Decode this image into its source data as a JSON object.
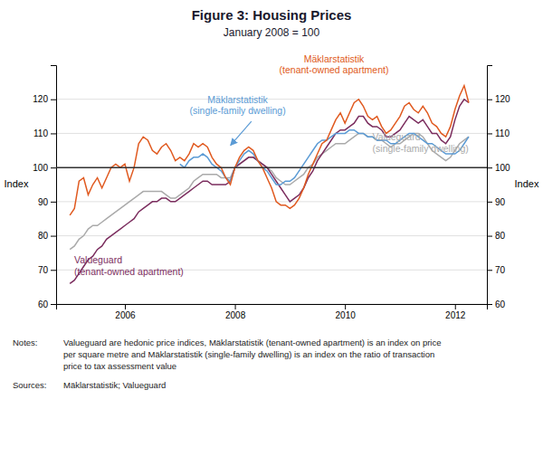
{
  "chart_data": {
    "type": "line",
    "title": "Figure 3: Housing Prices",
    "subtitle": "January 2008 = 100",
    "ylabel": "Index",
    "y2label": "Index",
    "ylim": [
      60,
      130
    ],
    "yticks": [
      60,
      70,
      80,
      90,
      100,
      110,
      120
    ],
    "y2lim": [
      60,
      130
    ],
    "y2ticks": [
      60,
      70,
      80,
      90,
      100,
      110,
      120
    ],
    "xlim": [
      2004.75,
      2012.58
    ],
    "xticks": [
      2006,
      2008,
      2010,
      2012
    ],
    "grid": true,
    "hline": 100,
    "x": [
      2005.0,
      2005.083,
      2005.167,
      2005.25,
      2005.333,
      2005.417,
      2005.5,
      2005.583,
      2005.667,
      2005.75,
      2005.833,
      2005.917,
      2006.0,
      2006.083,
      2006.167,
      2006.25,
      2006.333,
      2006.417,
      2006.5,
      2006.583,
      2006.667,
      2006.75,
      2006.833,
      2006.917,
      2007.0,
      2007.083,
      2007.167,
      2007.25,
      2007.333,
      2007.417,
      2007.5,
      2007.583,
      2007.667,
      2007.75,
      2007.833,
      2007.917,
      2008.0,
      2008.083,
      2008.167,
      2008.25,
      2008.333,
      2008.417,
      2008.5,
      2008.583,
      2008.667,
      2008.75,
      2008.833,
      2008.917,
      2009.0,
      2009.083,
      2009.167,
      2009.25,
      2009.333,
      2009.417,
      2009.5,
      2009.583,
      2009.667,
      2009.75,
      2009.833,
      2009.917,
      2010.0,
      2010.083,
      2010.167,
      2010.25,
      2010.333,
      2010.417,
      2010.5,
      2010.583,
      2010.667,
      2010.75,
      2010.833,
      2010.917,
      2011.0,
      2011.083,
      2011.167,
      2011.25,
      2011.333,
      2011.417,
      2011.5,
      2011.583,
      2011.667,
      2011.75,
      2011.833,
      2011.917,
      2012.0,
      2012.083,
      2012.167,
      2012.25
    ],
    "series": [
      {
        "color": "#AAAAAA",
        "values": [
          76,
          77,
          79,
          80,
          82,
          83,
          83,
          84,
          85,
          86,
          87,
          88,
          89,
          90,
          91,
          92,
          93,
          93,
          93,
          93,
          93,
          92,
          91,
          91,
          92,
          93,
          94,
          96,
          97,
          98,
          98,
          98,
          98,
          97,
          97,
          97,
          100,
          101,
          102,
          103,
          103,
          102,
          101,
          100,
          99,
          97,
          96,
          95,
          95,
          96,
          97,
          98,
          100,
          101,
          103,
          104,
          105,
          106,
          107,
          107,
          107,
          108,
          109,
          110,
          110,
          109,
          109,
          108,
          108,
          107,
          106,
          107,
          107,
          108,
          109,
          110,
          110,
          109,
          107,
          105,
          104,
          103,
          102,
          103,
          105,
          107,
          108,
          109
        ]
      },
      {
        "color": "#7B2D5E",
        "values": [
          66,
          67,
          69,
          71,
          73,
          74,
          76,
          77,
          79,
          80,
          81,
          82,
          83,
          84,
          85,
          87,
          88,
          89,
          90,
          90,
          91,
          91,
          90,
          90,
          91,
          92,
          93,
          94,
          95,
          96,
          96,
          95,
          95,
          95,
          95,
          96,
          100,
          101,
          102,
          103,
          103,
          102,
          101,
          100,
          98,
          96,
          94,
          92,
          90,
          91,
          92,
          94,
          97,
          99,
          102,
          104,
          106,
          108,
          110,
          111,
          111,
          112,
          113,
          115,
          115,
          113,
          112,
          112,
          111,
          109,
          109,
          110,
          111,
          113,
          115,
          114,
          113,
          114,
          112,
          110,
          110,
          108,
          107,
          109,
          114,
          118,
          120,
          119
        ]
      },
      {
        "color": "#5B9BD5",
        "values": [
          null,
          null,
          null,
          null,
          null,
          null,
          null,
          null,
          null,
          null,
          null,
          null,
          null,
          null,
          null,
          null,
          null,
          null,
          null,
          null,
          null,
          null,
          null,
          null,
          101,
          100,
          102,
          103,
          103,
          104,
          103,
          101,
          100,
          99,
          97,
          96,
          100,
          102,
          104,
          105,
          104,
          102,
          100,
          99,
          97,
          95,
          95,
          96,
          96,
          97,
          99,
          101,
          103,
          105,
          107,
          108,
          108,
          109,
          110,
          110,
          110,
          111,
          111,
          110,
          110,
          109,
          109,
          108,
          108,
          108,
          107,
          107,
          108,
          109,
          110,
          110,
          109,
          108,
          107,
          107,
          106,
          105,
          104,
          104,
          104,
          105,
          107,
          109
        ]
      },
      {
        "color": "#E05A20",
        "values": [
          86,
          88,
          96,
          97,
          92,
          95,
          97,
          94,
          97,
          100,
          101,
          100,
          101,
          96,
          100,
          107,
          109,
          108,
          105,
          104,
          106,
          107,
          105,
          102,
          103,
          102,
          104,
          107,
          106,
          107,
          106,
          103,
          101,
          100,
          97,
          95,
          100,
          103,
          105,
          106,
          105,
          102,
          100,
          97,
          94,
          90,
          89,
          89,
          88,
          89,
          91,
          94,
          98,
          101,
          104,
          107,
          108,
          111,
          114,
          116,
          113,
          116,
          119,
          120,
          118,
          115,
          114,
          115,
          112,
          110,
          111,
          113,
          115,
          118,
          119,
          117,
          116,
          118,
          116,
          113,
          112,
          110,
          109,
          112,
          117,
          121,
          124,
          119
        ]
      }
    ],
    "annotations": [
      {
        "text": "Mäklarstatistik\n(tenant-owned apartment)",
        "x": 2009.8,
        "y": 126.5,
        "color": "#E05A20"
      },
      {
        "text": "Mäklarstatistik\n(single-family dwelling)",
        "x": 2008.05,
        "y": 114.5,
        "color": "#5B9BD5"
      },
      {
        "text": "Valueguard\n(tenant-owned apartment)",
        "x": 2005.08,
        "y": 67.5,
        "color": "#7B2D5E"
      },
      {
        "text": "Valueguard\n(single-family dwelling)",
        "x": 2010.5,
        "y": 103.5,
        "color": "#AAAAAA"
      }
    ],
    "arrow": {
      "from": [
        2008.3,
        113.5
      ],
      "to": [
        2007.92,
        106.5
      ],
      "color": "#5B9BD5"
    },
    "notes_label": "Notes:",
    "notes": "Valueguard are hedonic price indices, Mäklarstatistik (tenant-owned apartment) is an index on price\nper square metre and Mäklarstatistik (single-family dwelling) is an index on the ratio of transaction\nprice to tax assessment value",
    "sources_label": "Sources:",
    "sources": "Mäklarstatistik; Valueguard"
  }
}
